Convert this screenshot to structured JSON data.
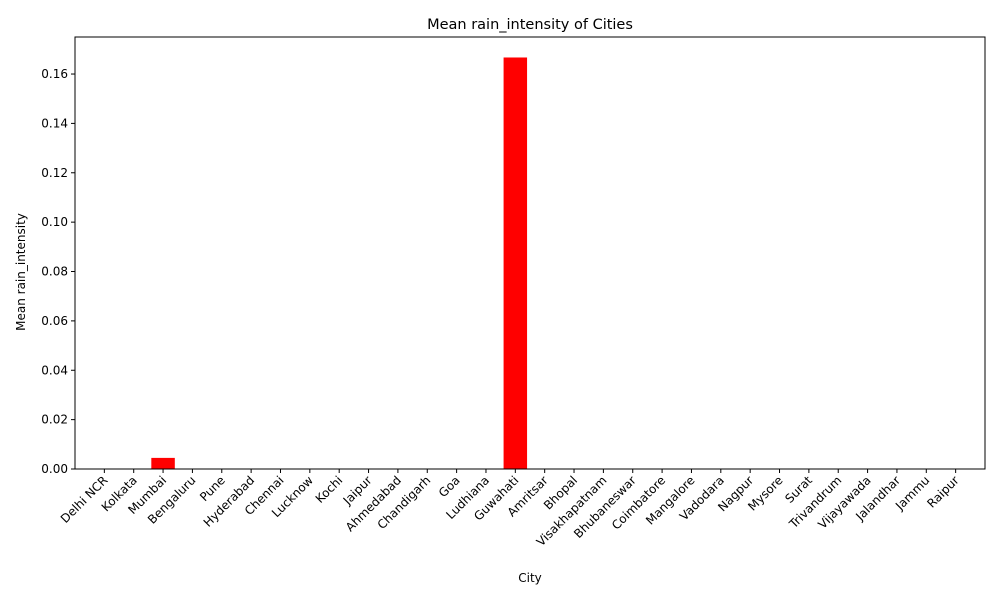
{
  "chart_data": {
    "type": "bar",
    "title": "Mean rain_intensity of Cities",
    "xlabel": "City",
    "ylabel": "Mean rain_intensity",
    "ylim": [
      0,
      0.175
    ],
    "yticks": [
      "0.00",
      "0.02",
      "0.04",
      "0.06",
      "0.08",
      "0.10",
      "0.12",
      "0.14",
      "0.16"
    ],
    "bar_color": "#ff0000",
    "grid": false,
    "categories": [
      "Delhi NCR",
      "Kolkata",
      "Mumbai",
      "Bengaluru",
      "Pune",
      "Hyderabad",
      "Chennai",
      "Lucknow",
      "Kochi",
      "Jaipur",
      "Ahmedabad",
      "Chandigarh",
      "Goa",
      "Ludhiana",
      "Guwahati",
      "Amritsar",
      "Bhopal",
      "Visakhapatnam",
      "Bhubaneswar",
      "Coimbatore",
      "Mangalore",
      "Vadodara",
      "Nagpur",
      "Mysore",
      "Surat",
      "Trivandrum",
      "Vijayawada",
      "Jalandhar",
      "Jammu",
      "Raipur"
    ],
    "values": [
      0,
      0,
      0.0045,
      0,
      0,
      0,
      0,
      0,
      0,
      0,
      0,
      0,
      0,
      0,
      0.1667,
      0,
      0,
      0,
      0,
      0,
      0,
      0,
      0,
      0,
      0,
      0,
      0,
      0,
      0,
      0
    ]
  }
}
